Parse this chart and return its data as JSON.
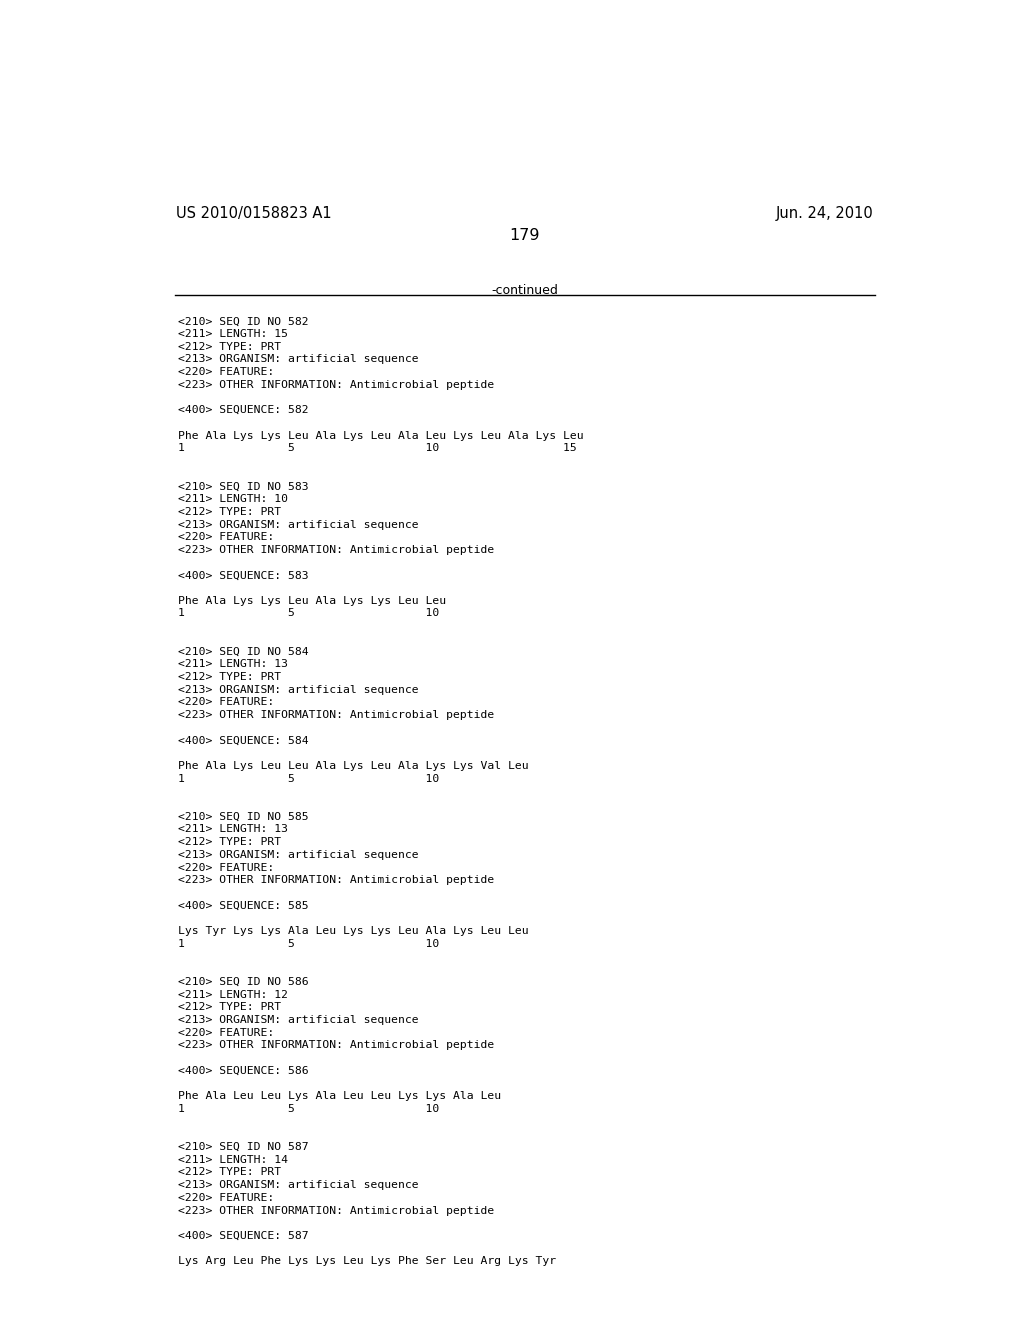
{
  "header_left": "US 2010/0158823 A1",
  "header_right": "Jun. 24, 2010",
  "page_number": "179",
  "continued_text": "-continued",
  "background_color": "#ffffff",
  "text_color": "#000000",
  "font_size_header": 10.5,
  "font_size_body": 9.0,
  "font_size_page": 11.5,
  "sequences": [
    {
      "seq_id": "582",
      "length": "15",
      "type": "PRT",
      "organism": "artificial sequence",
      "other_info": "Antimicrobial peptide",
      "sequence_line": "Phe Ala Lys Lys Leu Ala Lys Leu Ala Leu Lys Leu Ala Lys Leu",
      "numbering": "1               5                   10                  15"
    },
    {
      "seq_id": "583",
      "length": "10",
      "type": "PRT",
      "organism": "artificial sequence",
      "other_info": "Antimicrobial peptide",
      "sequence_line": "Phe Ala Lys Lys Leu Ala Lys Lys Leu Leu",
      "numbering": "1               5                   10"
    },
    {
      "seq_id": "584",
      "length": "13",
      "type": "PRT",
      "organism": "artificial sequence",
      "other_info": "Antimicrobial peptide",
      "sequence_line": "Phe Ala Lys Leu Leu Ala Lys Leu Ala Lys Lys Val Leu",
      "numbering": "1               5                   10"
    },
    {
      "seq_id": "585",
      "length": "13",
      "type": "PRT",
      "organism": "artificial sequence",
      "other_info": "Antimicrobial peptide",
      "sequence_line": "Lys Tyr Lys Lys Ala Leu Lys Lys Leu Ala Lys Leu Leu",
      "numbering": "1               5                   10"
    },
    {
      "seq_id": "586",
      "length": "12",
      "type": "PRT",
      "organism": "artificial sequence",
      "other_info": "Antimicrobial peptide",
      "sequence_line": "Phe Ala Leu Leu Lys Ala Leu Leu Lys Lys Ala Leu",
      "numbering": "1               5                   10"
    },
    {
      "seq_id": "587",
      "length": "14",
      "type": "PRT",
      "organism": "artificial sequence",
      "other_info": "Antimicrobial peptide",
      "sequence_line": "Lys Arg Leu Phe Lys Lys Leu Lys Phe Ser Leu Arg Lys Tyr",
      "numbering": ""
    }
  ]
}
